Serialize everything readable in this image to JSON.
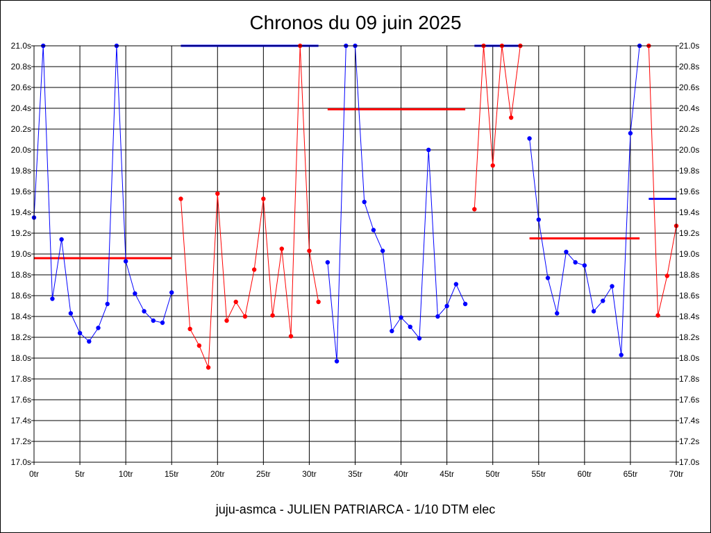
{
  "chart_data": {
    "type": "line",
    "title": "Chronos du 09 juin 2025",
    "footer": "juju-asmca - JULIEN PATRIARCA - 1/10 DTM elec",
    "x_ticks": [
      "0tr",
      "5tr",
      "10tr",
      "15tr",
      "20tr",
      "25tr",
      "30tr",
      "35tr",
      "40tr",
      "45tr",
      "50tr",
      "55tr",
      "60tr",
      "65tr",
      "70tr"
    ],
    "y_ticks": [
      "17.0s",
      "17.2s",
      "17.4s",
      "17.6s",
      "17.8s",
      "18.0s",
      "18.2s",
      "18.4s",
      "18.6s",
      "18.8s",
      "19.0s",
      "19.2s",
      "19.4s",
      "19.6s",
      "19.8s",
      "20.0s",
      "20.2s",
      "20.4s",
      "20.6s",
      "20.8s",
      "21.0s"
    ],
    "xlim": [
      0,
      70
    ],
    "ylim": [
      17.0,
      21.0
    ],
    "grid": true,
    "colors": {
      "blue": "#0000ff",
      "red": "#ff0000"
    },
    "series": [
      {
        "color": "#0000ff",
        "x": [
          0,
          1,
          2,
          3,
          4,
          5,
          6,
          7,
          8,
          9,
          10,
          11,
          12,
          13,
          14,
          15
        ],
        "y": [
          19.35,
          21.0,
          18.57,
          19.14,
          18.43,
          18.24,
          18.16,
          18.29,
          18.52,
          21.0,
          18.93,
          18.62,
          18.45,
          18.36,
          18.34,
          18.63
        ]
      },
      {
        "color": "#ff0000",
        "x": [
          16,
          17,
          18,
          19,
          20,
          21,
          22,
          23,
          24,
          25,
          26,
          27,
          28,
          29,
          30,
          31
        ],
        "y": [
          19.53,
          18.28,
          18.12,
          17.91,
          19.58,
          18.36,
          18.54,
          18.4,
          18.85,
          19.53,
          18.41,
          19.05,
          18.21,
          21.0,
          19.03,
          18.54
        ]
      },
      {
        "color": "#0000ff",
        "x": [
          32,
          33,
          34,
          35,
          36,
          37,
          38,
          39,
          40,
          41,
          42,
          43,
          44,
          45,
          46,
          47
        ],
        "y": [
          18.92,
          17.97,
          21.0,
          21.0,
          19.5,
          19.23,
          19.03,
          18.26,
          18.39,
          18.3,
          18.19,
          20.0,
          18.4,
          18.5,
          18.71,
          18.52
        ]
      },
      {
        "color": "#ff0000",
        "x": [
          48,
          49,
          50,
          51,
          52,
          53
        ],
        "y": [
          19.43,
          21.0,
          19.85,
          21.0,
          20.31,
          21.0
        ]
      },
      {
        "color": "#0000ff",
        "x": [
          54,
          55,
          56,
          57,
          58,
          59,
          60,
          61,
          62,
          63,
          64,
          65,
          66
        ],
        "y": [
          20.11,
          19.33,
          18.77,
          18.43,
          19.02,
          18.92,
          18.89,
          18.45,
          18.55,
          18.69,
          18.03,
          20.16,
          21.0
        ]
      },
      {
        "color": "#ff0000",
        "x": [
          67,
          68,
          69,
          70
        ],
        "y": [
          21.0,
          18.41,
          18.79,
          19.27
        ]
      }
    ],
    "average_lines": [
      {
        "color": "#ff0000",
        "x": [
          0,
          15
        ],
        "y": 18.96
      },
      {
        "color": "#0000ff",
        "x": [
          16,
          31
        ],
        "y": 21.0
      },
      {
        "color": "#ff0000",
        "x": [
          32,
          47
        ],
        "y": 20.39
      },
      {
        "color": "#0000ff",
        "x": [
          48,
          53
        ],
        "y": 21.0
      },
      {
        "color": "#ff0000",
        "x": [
          54,
          66
        ],
        "y": 19.15
      },
      {
        "color": "#0000ff",
        "x": [
          67,
          70
        ],
        "y": 19.53
      }
    ]
  }
}
